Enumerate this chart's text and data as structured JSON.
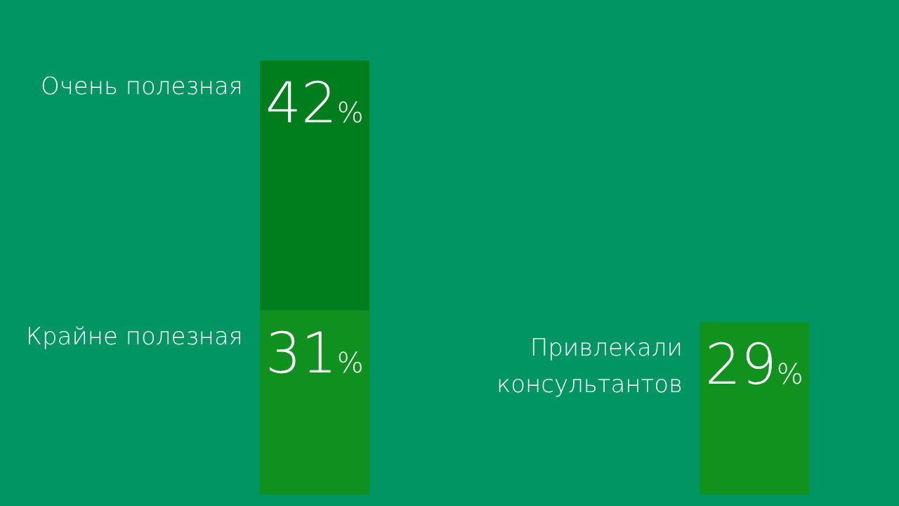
{
  "chart_data": {
    "type": "bar",
    "stacked": true,
    "categories": [
      null,
      null
    ],
    "series": [
      {
        "name": "Крайне полезная",
        "color": "#10911f",
        "values": [
          31,
          null
        ],
        "value_labels": [
          "31%",
          null
        ]
      },
      {
        "name": "Очень полезная",
        "color": "#007d1c",
        "values": [
          42,
          null
        ],
        "value_labels": [
          "42%",
          null
        ]
      },
      {
        "name": "Привлекали консультантов",
        "color": "#11921f",
        "values": [
          null,
          29
        ],
        "value_labels": [
          null,
          "29%"
        ]
      }
    ]
  }
}
